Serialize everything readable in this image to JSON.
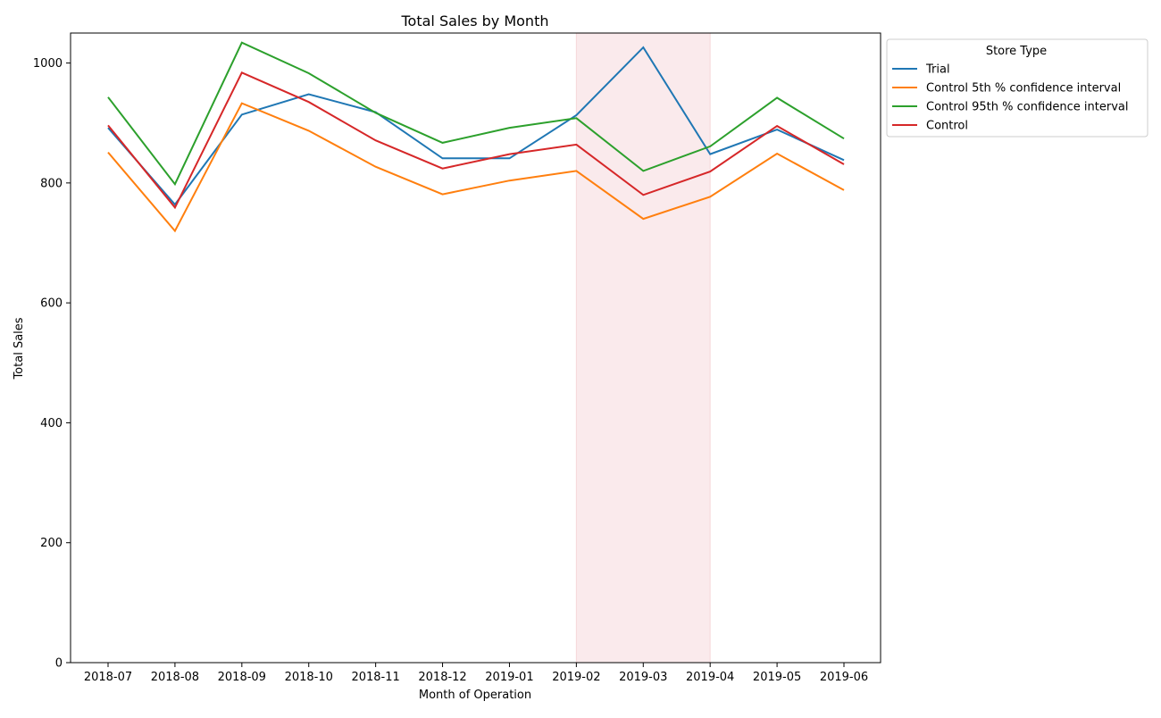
{
  "chart_data": {
    "type": "line",
    "title": "Total Sales by Month",
    "xlabel": "Month of Operation",
    "ylabel": "Total Sales",
    "categories": [
      "2018-07",
      "2018-08",
      "2018-09",
      "2018-10",
      "2018-11",
      "2018-12",
      "2019-01",
      "2019-02",
      "2019-03",
      "2019-04",
      "2019-05",
      "2019-06"
    ],
    "ylim": [
      0,
      1050
    ],
    "yticks": [
      0,
      200,
      400,
      600,
      800,
      1000
    ],
    "grid": false,
    "legend": {
      "title": "Store Type",
      "placement": "upper-right-outside"
    },
    "highlight": {
      "from": "2019-02",
      "to": "2019-04",
      "color": "#f2c4c8"
    },
    "series": [
      {
        "name": "Trial",
        "color": "#1f77b4",
        "values": [
          892,
          764,
          914,
          948,
          918,
          841,
          841,
          913,
          1026,
          848,
          889,
          838
        ]
      },
      {
        "name": "Control 5th % confidence interval",
        "color": "#ff7f0e",
        "values": [
          851,
          720,
          933,
          887,
          827,
          781,
          804,
          820,
          740,
          777,
          849,
          788
        ]
      },
      {
        "name": "Control 95th % confidence interval",
        "color": "#2ca02c",
        "values": [
          943,
          798,
          1034,
          983,
          917,
          867,
          892,
          908,
          820,
          861,
          942,
          874
        ]
      },
      {
        "name": "Control",
        "color": "#d62728",
        "values": [
          896,
          759,
          984,
          935,
          871,
          824,
          848,
          864,
          780,
          819,
          895,
          831
        ]
      }
    ]
  }
}
